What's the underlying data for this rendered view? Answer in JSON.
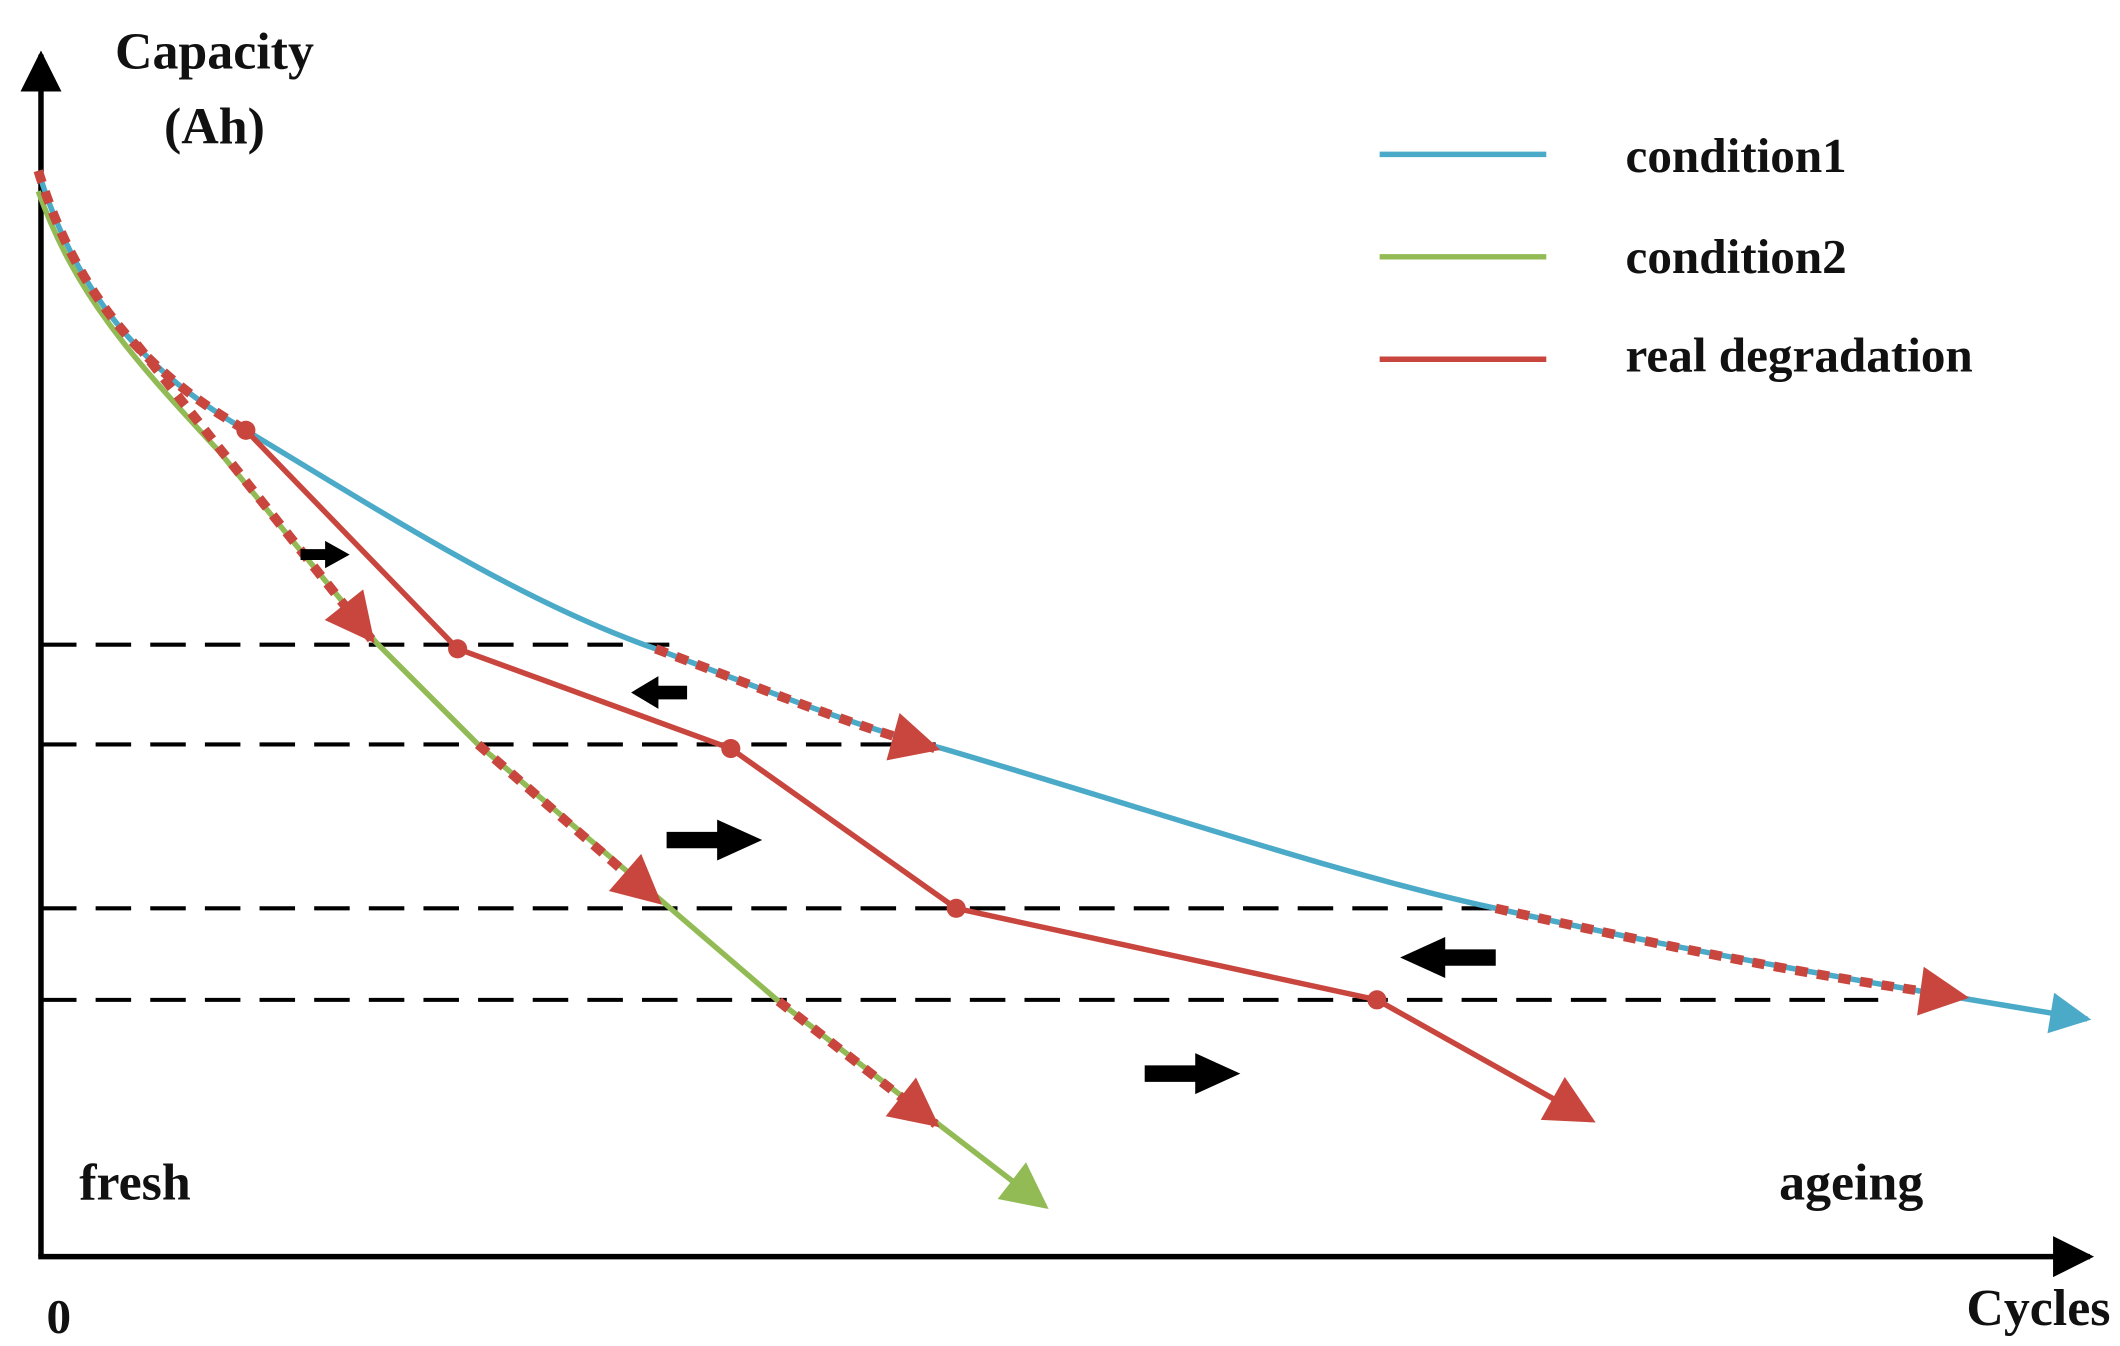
{
  "y_axis": {
    "label_lines": [
      "Capacity",
      "(Ah)"
    ]
  },
  "x_axis": {
    "label": "Cycles",
    "origin": "0"
  },
  "annotations": {
    "left": "fresh",
    "right": "ageing"
  },
  "legend": [
    "condition1",
    "condition2",
    "real degradation"
  ]
}
